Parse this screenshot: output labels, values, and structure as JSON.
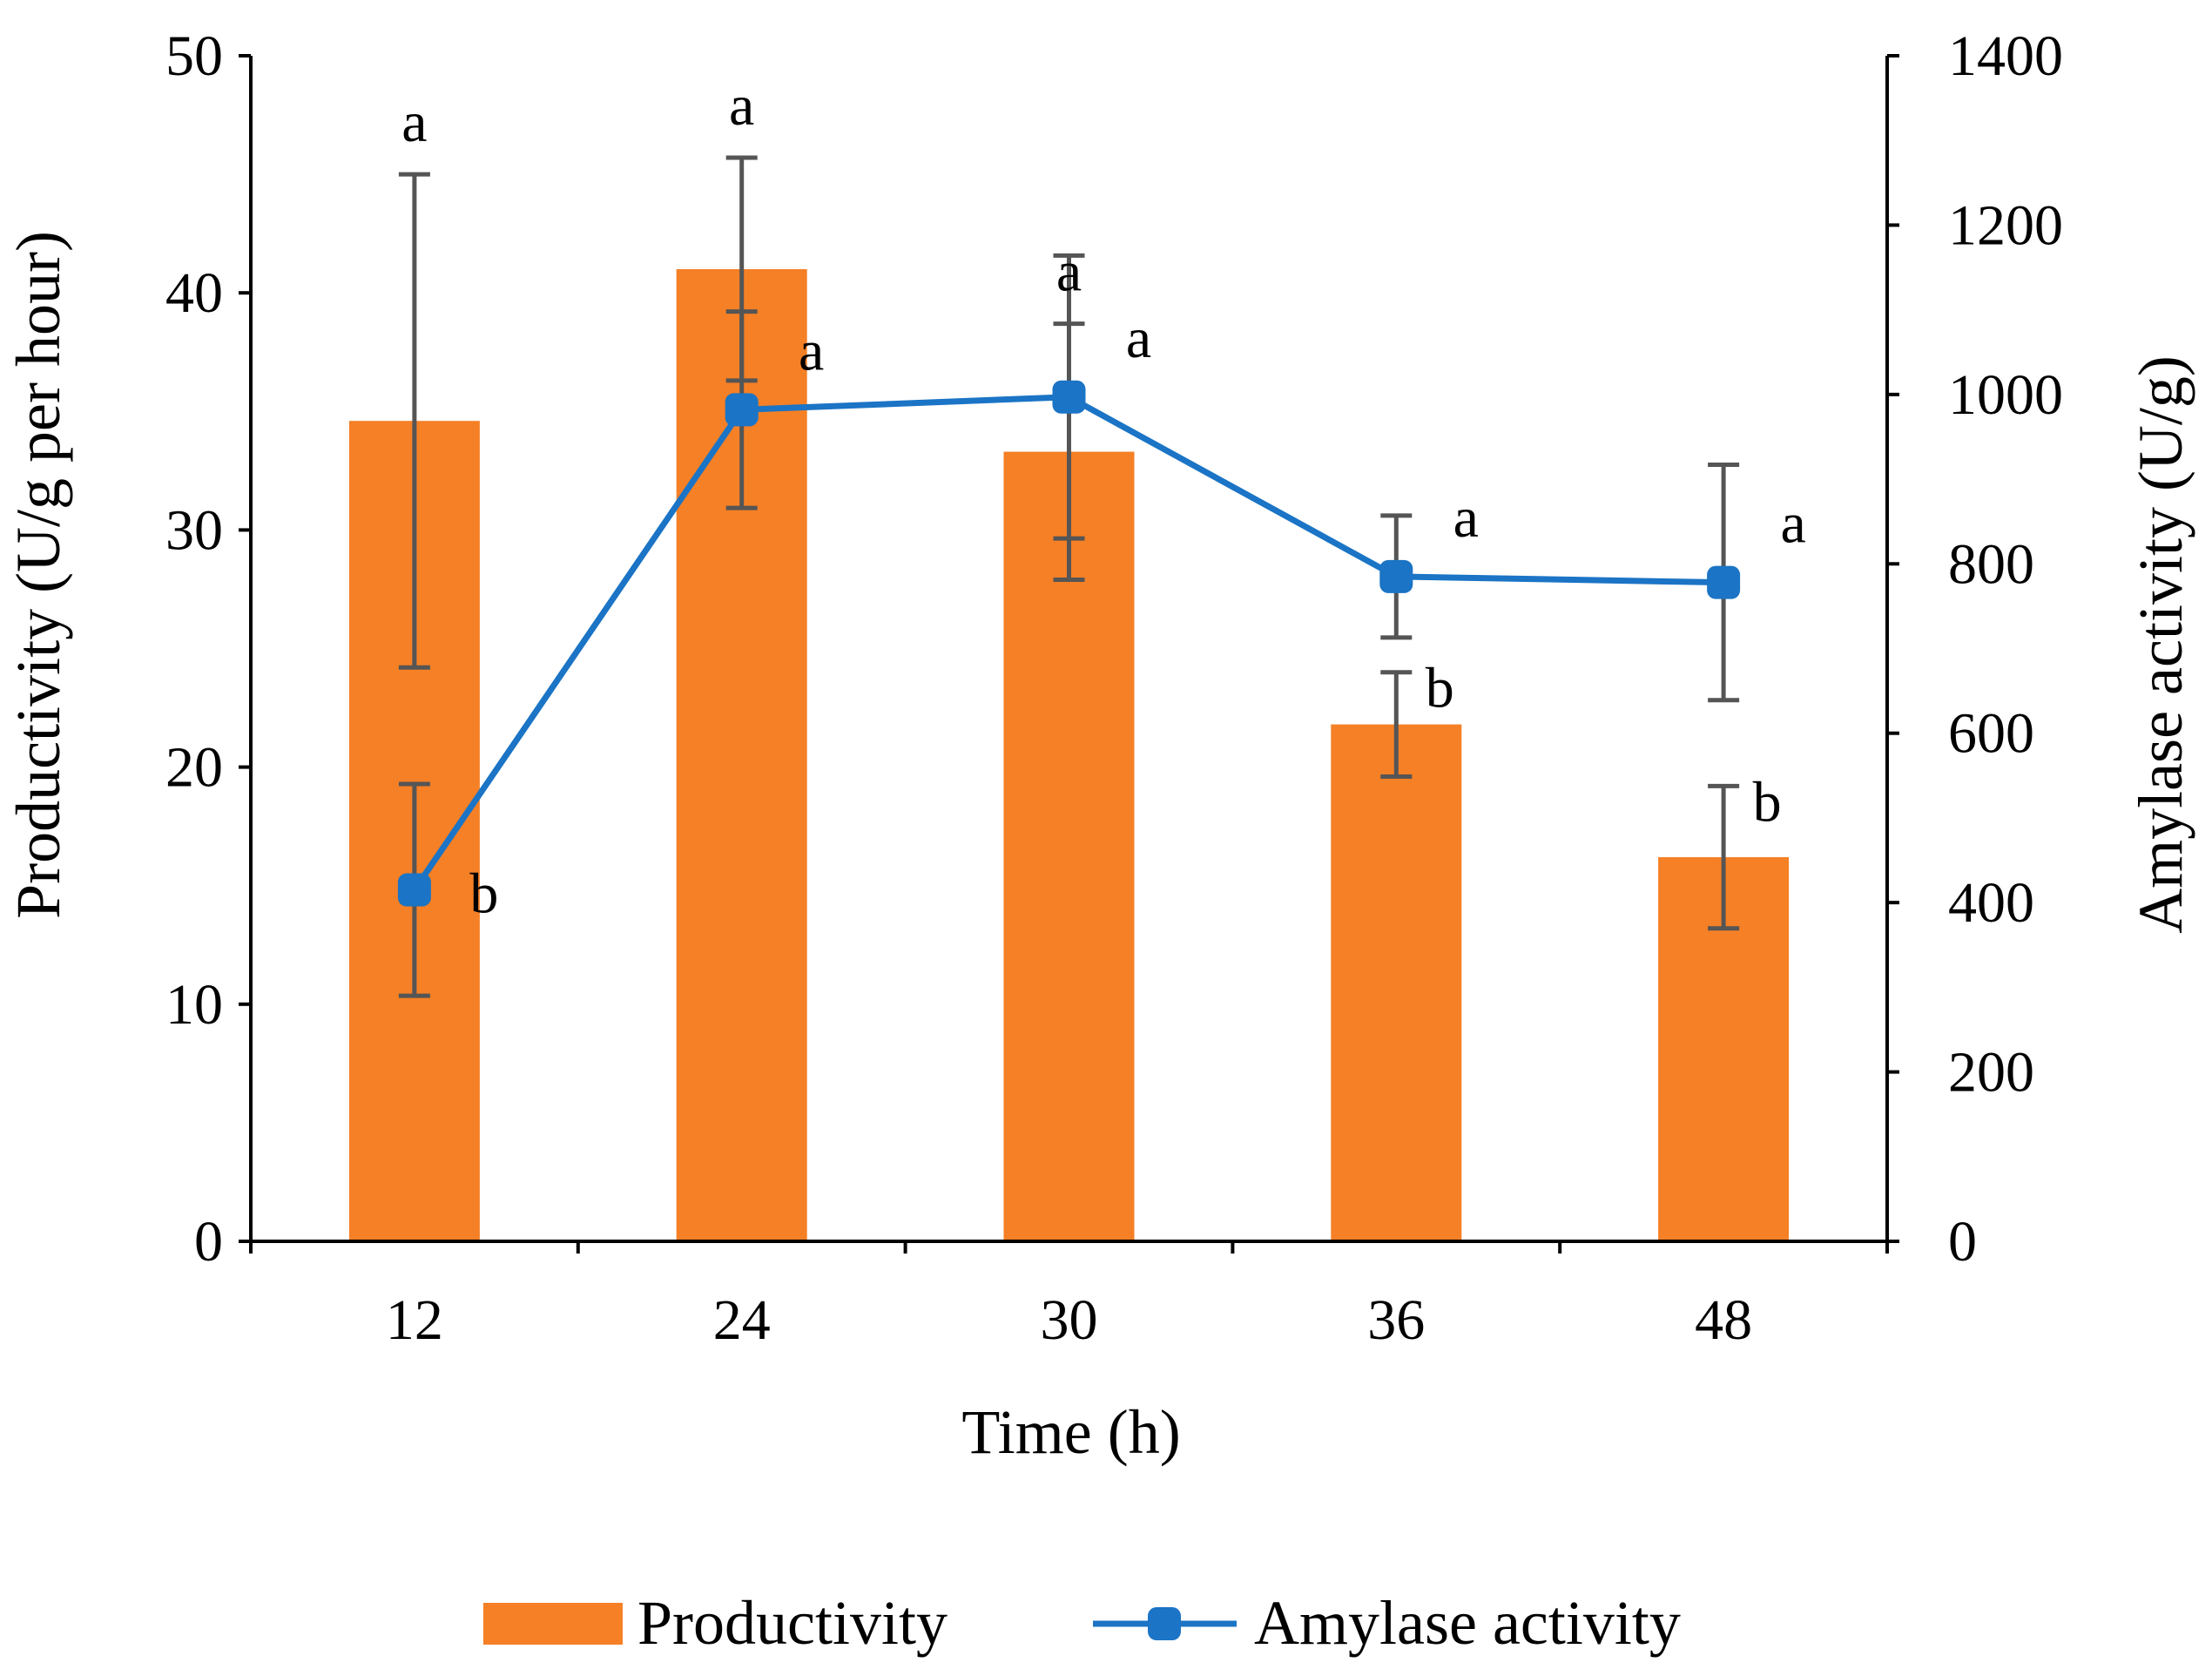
{
  "chart_data": {
    "type": "bar+line",
    "title": "",
    "xlabel": "Time (h)",
    "ylabel_left": "Productivity (U/g per hour)",
    "ylabel_right": "Amylase activity (U/g)",
    "categories": [
      "12",
      "24",
      "30",
      "36",
      "48"
    ],
    "ylim_left": [
      0,
      50
    ],
    "yticks_left": [
      "0",
      "10",
      "20",
      "30",
      "40",
      "50"
    ],
    "ylim_right": [
      0,
      1400
    ],
    "yticks_right": [
      "0",
      "200",
      "400",
      "600",
      "800",
      "1000",
      "1200",
      "1400"
    ],
    "series": [
      {
        "name": "Productivity",
        "kind": "bar",
        "axis": "left",
        "color": "#F58026",
        "values": [
          34.6,
          41.0,
          33.3,
          21.8,
          16.2
        ],
        "error": [
          10.4,
          4.7,
          5.4,
          2.2,
          3.0
        ],
        "letters": [
          "a",
          "a",
          "a",
          "b",
          "b"
        ]
      },
      {
        "name": "Amylase activity",
        "kind": "line",
        "axis": "right",
        "color": "#1B74C5",
        "values": [
          415,
          982,
          997,
          785,
          778
        ],
        "error": [
          125,
          116,
          167,
          72,
          139
        ],
        "letters": [
          "b",
          "a",
          "a",
          "a",
          "a"
        ]
      }
    ],
    "error_bar_color": "#555555",
    "legend": [
      "Productivity",
      "Amylase activity"
    ],
    "legend_position": "bottom"
  }
}
